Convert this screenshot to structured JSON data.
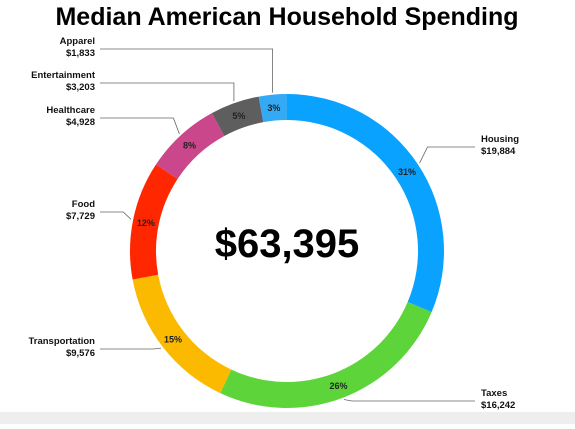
{
  "chart_data": {
    "type": "pie",
    "variant": "donut",
    "title": "Median American Household Spending",
    "center_label": "$63,395",
    "slices": [
      {
        "label": "Housing",
        "value": 19884,
        "value_label": "$19,884",
        "pct_label": "31%",
        "color": "#0aa2ff"
      },
      {
        "label": "Taxes",
        "value": 16242,
        "value_label": "$16,242",
        "pct_label": "26%",
        "color": "#5cd43a"
      },
      {
        "label": "Transportation",
        "value": 9576,
        "value_label": "$9,576",
        "pct_label": "15%",
        "color": "#fbb900"
      },
      {
        "label": "Food",
        "value": 7729,
        "value_label": "$7,729",
        "pct_label": "12%",
        "color": "#ff2700"
      },
      {
        "label": "Healthcare",
        "value": 4928,
        "value_label": "$4,928",
        "pct_label": "8%",
        "color": "#c9478a"
      },
      {
        "label": "Entertainment",
        "value": 3203,
        "value_label": "$3,203",
        "pct_label": "5%",
        "color": "#5e5e5e"
      },
      {
        "label": "Apparel",
        "value": 1833,
        "value_label": "$1,833",
        "pct_label": "3%",
        "color": "#34aaf5"
      }
    ],
    "legend": "none"
  }
}
